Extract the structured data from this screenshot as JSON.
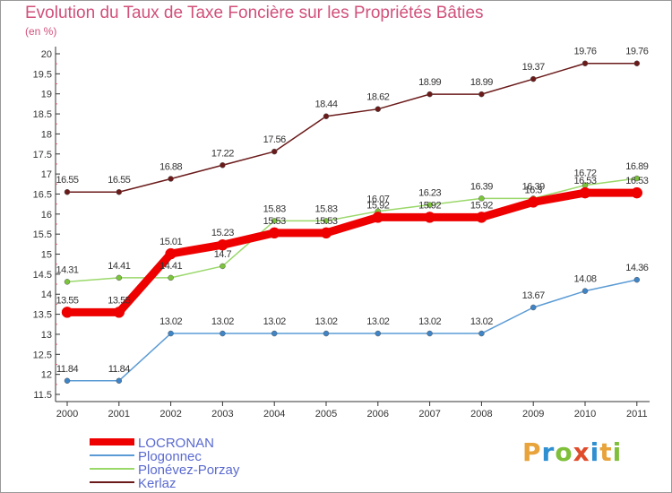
{
  "title": "Evolution du Taux de Taxe Foncière sur les Propriétés Bâties",
  "unit": "(en %)",
  "logo": [
    "P",
    "r",
    "o",
    "x",
    "i",
    "t",
    "i"
  ],
  "logo_colors": [
    "#e8a33a",
    "#2e8fd1",
    "#7fbf3a",
    "#e04b2a",
    "#2e8fd1",
    "#e8a33a",
    "#7fbf3a"
  ],
  "chart_data": {
    "type": "line",
    "title": "Evolution du Taux de Taxe Foncière sur les Propriétés Bâties",
    "ylabel": "(en %)",
    "xlabel": "",
    "x": [
      "2000",
      "2001",
      "2002",
      "2003",
      "2004",
      "2005",
      "2006",
      "2007",
      "2008",
      "2009",
      "2010",
      "2011"
    ],
    "ylim": [
      11.5,
      20
    ],
    "yticks": [
      "11.5",
      "12",
      "12.5",
      "13",
      "13.5",
      "14",
      "14.5",
      "15",
      "15.5",
      "16",
      "16.5",
      "17",
      "17.5",
      "18",
      "18.5",
      "19",
      "19.5",
      "20"
    ],
    "grid": false,
    "legend": "bottom-left",
    "series": [
      {
        "name": "Kerlaz",
        "color": "#6b1a1a",
        "dot": "#6b1a1a",
        "values": [
          16.55,
          16.55,
          16.88,
          17.22,
          17.56,
          18.44,
          18.62,
          18.99,
          18.99,
          19.37,
          19.76,
          19.76
        ],
        "labels": [
          "16.55",
          "16.55",
          "16.88",
          "17.22",
          "17.56",
          "18.44",
          "18.62",
          "18.99",
          "18.99",
          "19.37",
          "19.76",
          "19.76"
        ]
      },
      {
        "name": "Plonévez-Porzay",
        "color": "#9ad86a",
        "dot": "#7cc43c",
        "values": [
          14.31,
          14.41,
          14.41,
          14.7,
          15.83,
          15.83,
          16.07,
          16.23,
          16.39,
          16.39,
          16.72,
          16.89
        ],
        "labels": [
          "14.31",
          "14.41",
          "14.41",
          "14.7",
          "15.83",
          "15.83",
          "16.07",
          "16.23",
          "16.39",
          "16.39",
          "16.72",
          "16.89"
        ]
      },
      {
        "name": "Plogonnec",
        "color": "#5b9bd5",
        "dot": "#3e84c6",
        "values": [
          11.84,
          11.84,
          13.02,
          13.02,
          13.02,
          13.02,
          13.02,
          13.02,
          13.02,
          13.67,
          14.08,
          14.36
        ],
        "labels": [
          "11.84",
          "11.84",
          "13.02",
          "13.02",
          "13.02",
          "13.02",
          "13.02",
          "13.02",
          "13.02",
          "13.67",
          "14.08",
          "14.36"
        ]
      },
      {
        "name": "LOCRONAN",
        "color": "#ee0000",
        "dot": "#ee0000",
        "thick": true,
        "values": [
          13.55,
          13.55,
          15.01,
          15.23,
          15.53,
          15.53,
          15.92,
          15.92,
          15.92,
          16.3,
          16.53,
          16.53
        ],
        "labels": [
          "13.55",
          "13.55",
          "15.01",
          "15.23",
          "15.53",
          "15.53",
          "15.92",
          "15.92",
          "15.92",
          "16.3",
          "16.53",
          "16.53"
        ]
      }
    ],
    "legend_order": [
      "LOCRONAN",
      "Plogonnec",
      "Plonévez-Porzay",
      "Kerlaz"
    ]
  }
}
